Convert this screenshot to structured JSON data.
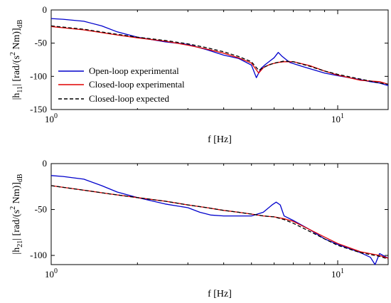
{
  "chart_data": [
    {
      "type": "line",
      "xlabel": "f [Hz]",
      "ylabel": "|h11| [rad/(s^2 Nm)]dB",
      "ylabel_parts": {
        "pre": "|h",
        "sub1": "11",
        "mid": "| [rad/(s",
        "sup": "2",
        "post": " Nm)]",
        "sub2": "dB"
      },
      "x_scale": "log",
      "xlim": [
        1,
        15
      ],
      "ylim": [
        -150,
        0
      ],
      "yticks": [
        0,
        -50,
        -100,
        -150
      ],
      "xticks": [
        {
          "value": 1,
          "base": "10",
          "exp": "0"
        },
        {
          "value": 10,
          "base": "10",
          "exp": "1"
        }
      ],
      "grid": false,
      "legend_position": "center-left",
      "legend": [
        {
          "label": "Open-loop experimental",
          "color": "#0000cc",
          "style": "solid"
        },
        {
          "label": "Closed-loop experimental",
          "color": "#e00000",
          "style": "solid"
        },
        {
          "label": "Closed-loop expected",
          "color": "#000000",
          "style": "dashed"
        }
      ],
      "series": [
        {
          "name": "Open-loop experimental",
          "color": "#0000cc",
          "style": "solid",
          "x": [
            1,
            1.1,
            1.3,
            1.5,
            1.7,
            2,
            2.5,
            3,
            3.5,
            4,
            4.5,
            5,
            5.2,
            5.4,
            5.6,
            6,
            6.2,
            6.4,
            6.8,
            7.5,
            9,
            10,
            12,
            13,
            14,
            15
          ],
          "y": [
            -13,
            -14,
            -17,
            -24,
            -33,
            -41,
            -48,
            -52,
            -60,
            -68,
            -73,
            -83,
            -102,
            -88,
            -82,
            -72,
            -64,
            -70,
            -79,
            -85,
            -95,
            -99,
            -105,
            -108,
            -110,
            -114
          ]
        },
        {
          "name": "Closed-loop experimental",
          "color": "#e00000",
          "style": "solid",
          "x": [
            1,
            1.3,
            1.6,
            2,
            2.5,
            3,
            3.5,
            4,
            4.5,
            5,
            5.3,
            5.5,
            5.8,
            6.2,
            6.5,
            7,
            8,
            9,
            10,
            12,
            14,
            15
          ],
          "y": [
            -25,
            -30,
            -36,
            -42,
            -47,
            -53,
            -59,
            -65,
            -72,
            -80,
            -95,
            -87,
            -82,
            -79,
            -78,
            -78,
            -84,
            -92,
            -98,
            -106,
            -108,
            -112
          ]
        },
        {
          "name": "Closed-loop expected",
          "color": "#000000",
          "style": "dashed",
          "x": [
            1,
            1.3,
            1.6,
            2,
            2.5,
            3,
            3.5,
            4,
            4.5,
            5,
            5.3,
            5.6,
            6,
            6.5,
            7,
            8,
            9,
            10,
            12,
            14,
            15
          ],
          "y": [
            -24,
            -29,
            -35,
            -41,
            -46,
            -51,
            -57,
            -63,
            -70,
            -78,
            -91,
            -85,
            -80,
            -77,
            -78,
            -85,
            -92,
            -97,
            -104,
            -110,
            -112
          ]
        }
      ]
    },
    {
      "type": "line",
      "xlabel": "f [Hz]",
      "ylabel": "|h21| [rad/(s^2 Nm)]dB",
      "ylabel_parts": {
        "pre": "|h",
        "sub1": "21",
        "mid": "| [rad/(s",
        "sup": "2",
        "post": " Nm)]",
        "sub2": "dB"
      },
      "x_scale": "log",
      "xlim": [
        1,
        15
      ],
      "ylim": [
        -110,
        0
      ],
      "yticks": [
        0,
        -50,
        -100
      ],
      "xticks": [
        {
          "value": 1,
          "base": "10",
          "exp": "0"
        },
        {
          "value": 10,
          "base": "10",
          "exp": "1"
        }
      ],
      "grid": false,
      "series": [
        {
          "name": "Open-loop experimental",
          "color": "#0000cc",
          "style": "solid",
          "x": [
            1,
            1.1,
            1.3,
            1.5,
            1.7,
            2,
            2.5,
            3,
            3.3,
            3.6,
            4,
            4.5,
            5,
            5.5,
            5.9,
            6.1,
            6.3,
            6.5,
            7,
            8,
            9,
            10,
            12,
            13,
            13.5,
            14,
            15
          ],
          "y": [
            -13,
            -14,
            -17,
            -24,
            -31,
            -37,
            -44,
            -48,
            -53,
            -56,
            -57,
            -57,
            -57,
            -53,
            -45,
            -42,
            -45,
            -57,
            -62,
            -72,
            -82,
            -88,
            -97,
            -102,
            -110,
            -98,
            -103
          ]
        },
        {
          "name": "Closed-loop experimental",
          "color": "#e00000",
          "style": "solid",
          "x": [
            1,
            1.3,
            1.6,
            2,
            2.5,
            3,
            3.5,
            4,
            4.5,
            5,
            5.5,
            6,
            6.5,
            7,
            8,
            9,
            10,
            12,
            14,
            15
          ],
          "y": [
            -24,
            -29,
            -33,
            -37,
            -41,
            -45,
            -48,
            -51,
            -53,
            -55,
            -57,
            -58,
            -60,
            -63,
            -72,
            -80,
            -87,
            -96,
            -100,
            -103
          ]
        },
        {
          "name": "Closed-loop expected",
          "color": "#000000",
          "style": "dashed",
          "x": [
            1,
            1.3,
            1.6,
            2,
            2.5,
            3,
            3.5,
            4,
            4.5,
            5,
            5.5,
            6,
            6.5,
            7,
            8,
            9,
            10,
            12,
            14,
            15
          ],
          "y": [
            -24,
            -29,
            -33,
            -37,
            -41,
            -45,
            -48,
            -51,
            -53,
            -55,
            -57,
            -58,
            -61,
            -65,
            -74,
            -82,
            -89,
            -97,
            -101,
            -104
          ]
        }
      ]
    }
  ]
}
